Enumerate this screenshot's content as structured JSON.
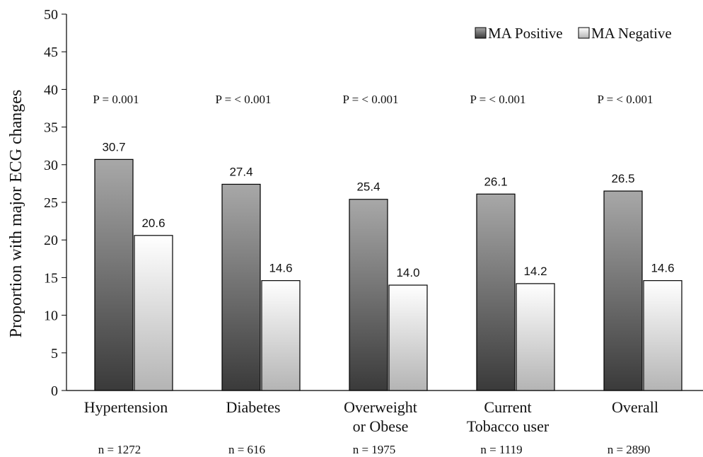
{
  "chart_data": {
    "type": "bar",
    "ylabel": "Proportion with major ECG changes",
    "ylim": [
      0,
      50
    ],
    "yticks": [
      "0",
      "5",
      "10",
      "15",
      "20",
      "25",
      "30",
      "35",
      "40",
      "45",
      "50"
    ],
    "categories": [
      [
        "Hypertension"
      ],
      [
        "Diabetes"
      ],
      [
        "Overweight",
        "or Obese"
      ],
      [
        "Current",
        "Tobacco user"
      ],
      [
        "Overall"
      ]
    ],
    "n_labels": [
      "n = 1272",
      "n = 616",
      "n = 1975",
      "n = 1119",
      "n = 2890"
    ],
    "p_values": [
      "P = 0.001",
      "P = < 0.001",
      "P = < 0.001",
      "P = < 0.001",
      "P = < 0.001"
    ],
    "series": [
      {
        "name": "MA Positive",
        "values": [
          30.7,
          27.4,
          25.4,
          26.1,
          26.5
        ],
        "labels": [
          "30.7",
          "27.4",
          "25.4",
          "26.1",
          "26.5"
        ]
      },
      {
        "name": "MA Negative",
        "values": [
          20.6,
          14.6,
          14.0,
          14.2,
          14.6
        ],
        "labels": [
          "20.6",
          "14.6",
          "14.0",
          "14.2",
          "14.6"
        ]
      }
    ],
    "legend_position": "top-right",
    "grid": false,
    "colors": {
      "positive_top": "#a8a8a8",
      "positive_bottom": "#3a3a3a",
      "negative_top": "#ffffff",
      "negative_bottom": "#b4b4b4",
      "axis": "#000000"
    }
  }
}
